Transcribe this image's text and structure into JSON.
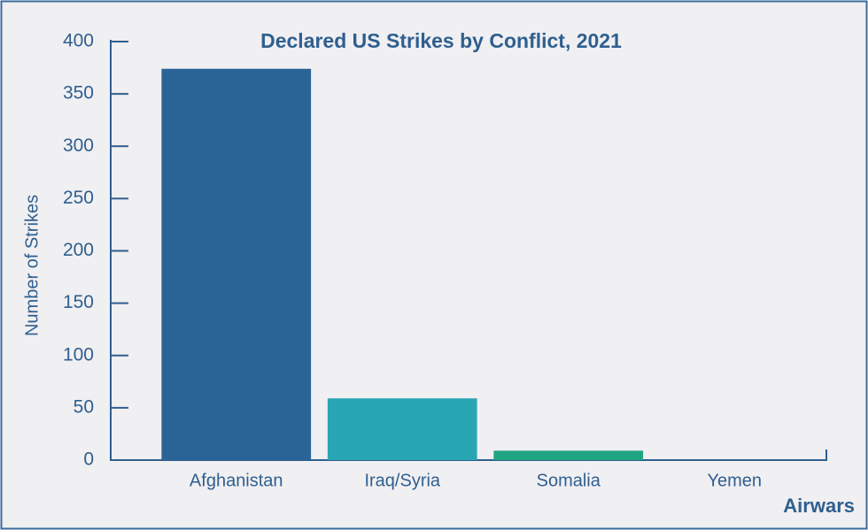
{
  "chart_data": {
    "type": "bar",
    "title": "Declared US Strikes by Conflict, 2021",
    "y_label": "Number of Strikes",
    "categories": [
      "Afghanistan",
      "Iraq/Syria",
      "Somalia",
      "Yemen"
    ],
    "values": [
      374,
      59,
      9,
      0
    ],
    "colors": [
      "#2a6496",
      "#29a6b3",
      "#21a482",
      "#2a6496"
    ],
    "ylim": [
      0,
      400
    ],
    "yticks": [
      0,
      50,
      100,
      150,
      200,
      250,
      300,
      350,
      400
    ],
    "grid": false,
    "source": "Airwars"
  }
}
